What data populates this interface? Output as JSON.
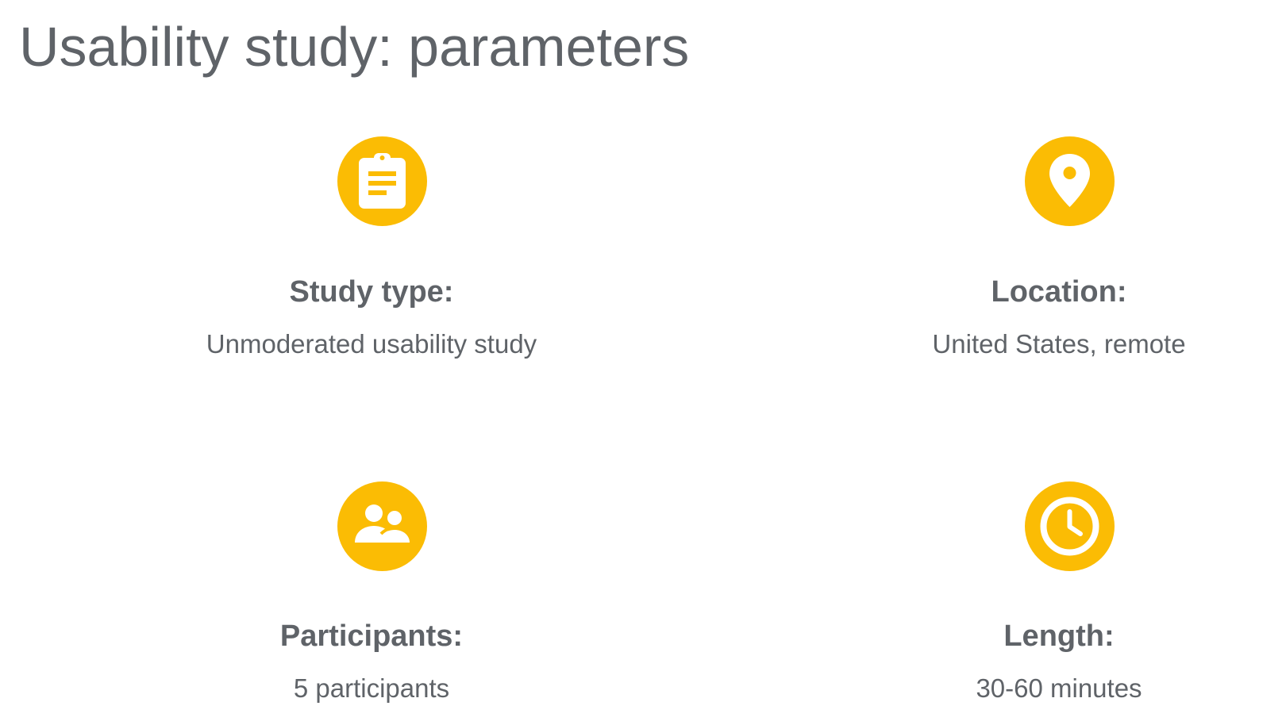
{
  "title": "Usability study: parameters",
  "accent_color": "#fbbc04",
  "text_color": "#5f6368",
  "parameters": [
    {
      "icon": "clipboard-icon",
      "label": "Study type:",
      "value": "Unmoderated usability study"
    },
    {
      "icon": "location-pin-icon",
      "label": "Location:",
      "value": "United States, remote"
    },
    {
      "icon": "people-icon",
      "label": "Participants:",
      "value": "5 participants"
    },
    {
      "icon": "clock-icon",
      "label": "Length:",
      "value": "30-60 minutes"
    }
  ]
}
